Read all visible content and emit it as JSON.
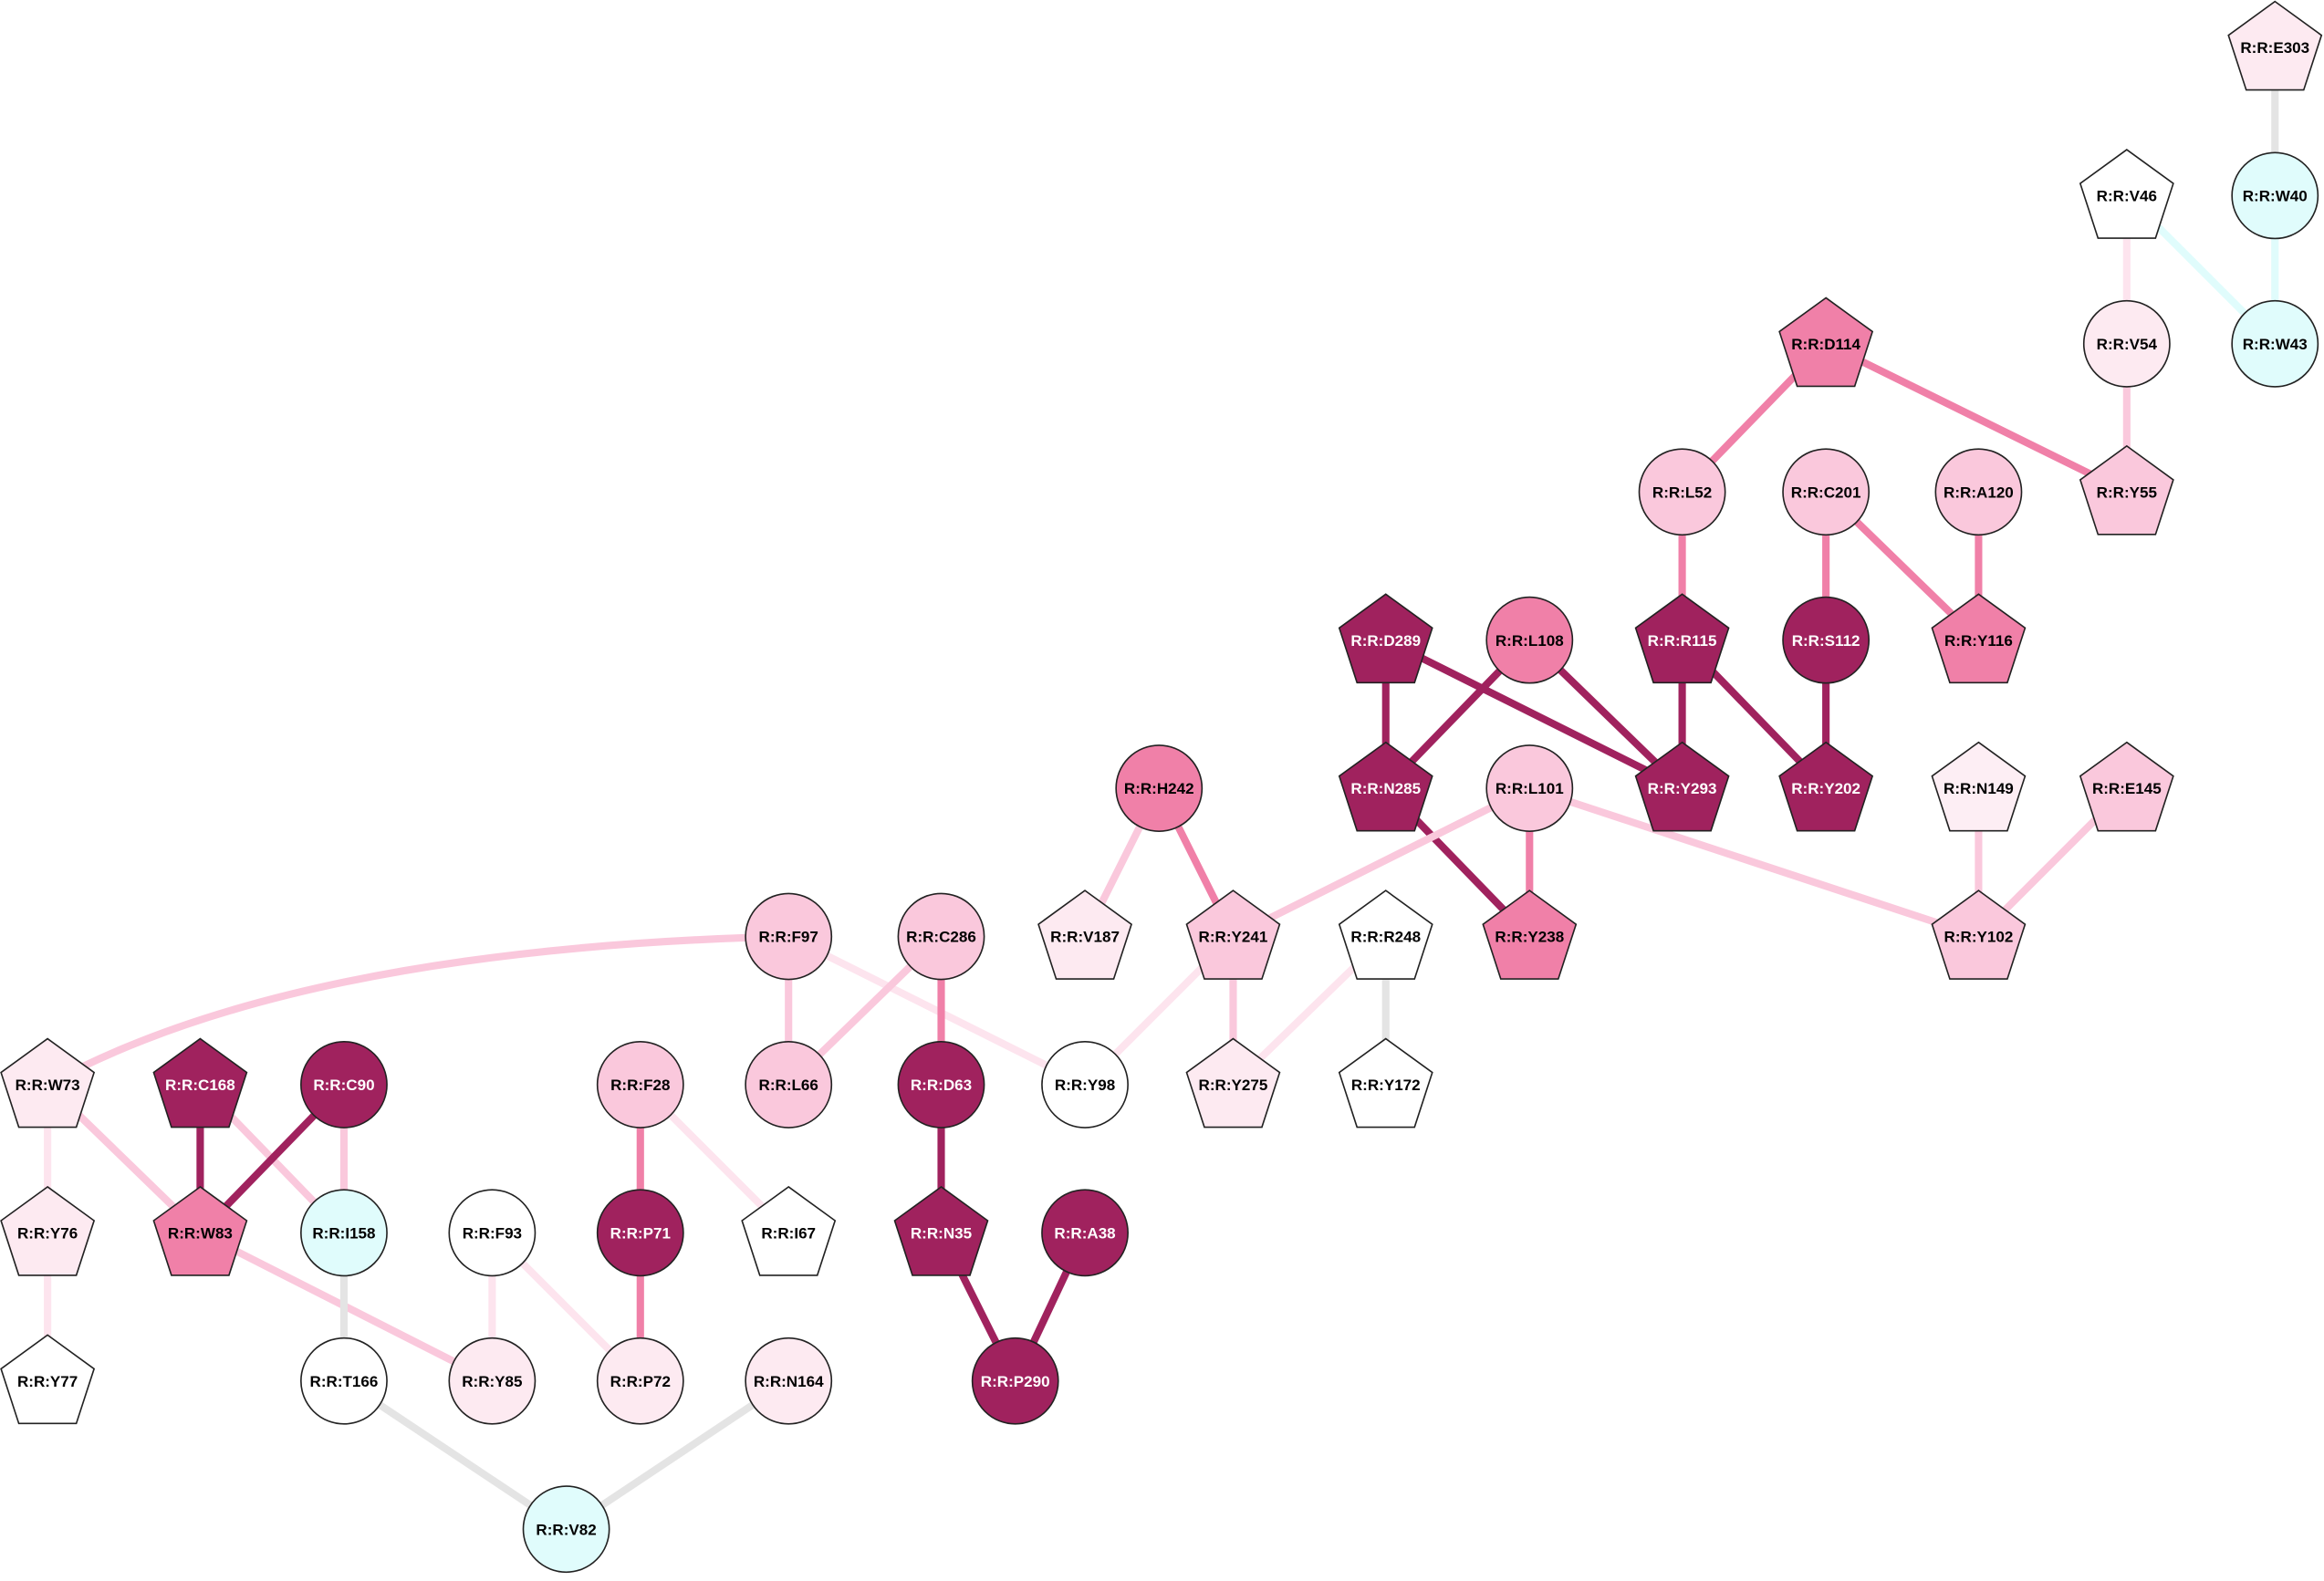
{
  "nodes": [
    {
      "label": "R:R:E303",
      "shape": "pentagon",
      "color": "#fdeaf1"
    },
    {
      "label": "R:R:W40",
      "shape": "circle",
      "color": "#e0fcfc"
    },
    {
      "label": "R:R:V46",
      "shape": "pentagon",
      "color": "#ffffff"
    },
    {
      "label": "R:R:W43",
      "shape": "circle",
      "color": "#e0fcfc"
    },
    {
      "label": "R:R:V54",
      "shape": "circle",
      "color": "#fdeaf1"
    },
    {
      "label": "R:R:D114",
      "shape": "pentagon",
      "color": "#f080a8"
    },
    {
      "label": "R:R:L52",
      "shape": "circle",
      "color": "#fac8dc"
    },
    {
      "label": "R:R:C201",
      "shape": "circle",
      "color": "#fac8dc"
    },
    {
      "label": "R:R:A120",
      "shape": "circle",
      "color": "#fac8dc"
    },
    {
      "label": "R:R:Y55",
      "shape": "pentagon",
      "color": "#fac8dc"
    },
    {
      "label": "R:R:D289",
      "shape": "pentagon",
      "color": "#a0225e"
    },
    {
      "label": "R:R:L108",
      "shape": "circle",
      "color": "#f080a8"
    },
    {
      "label": "R:R:R115",
      "shape": "pentagon",
      "color": "#a0225e"
    },
    {
      "label": "R:R:S112",
      "shape": "circle",
      "color": "#a0225e"
    },
    {
      "label": "R:R:Y116",
      "shape": "pentagon",
      "color": "#f080a8"
    },
    {
      "label": "R:R:H242",
      "shape": "circle",
      "color": "#f080a8"
    },
    {
      "label": "R:R:N285",
      "shape": "pentagon",
      "color": "#a0225e"
    },
    {
      "label": "R:R:L101",
      "shape": "circle",
      "color": "#fac8dc"
    },
    {
      "label": "R:R:Y293",
      "shape": "pentagon",
      "color": "#a0225e"
    },
    {
      "label": "R:R:Y202",
      "shape": "pentagon",
      "color": "#a0225e"
    },
    {
      "label": "R:R:N149",
      "shape": "pentagon",
      "color": "#fdeef4"
    },
    {
      "label": "R:R:E145",
      "shape": "pentagon",
      "color": "#fac8dc"
    },
    {
      "label": "R:R:F97",
      "shape": "circle",
      "color": "#fac8dc"
    },
    {
      "label": "R:R:C286",
      "shape": "circle",
      "color": "#fac8dc"
    },
    {
      "label": "R:R:V187",
      "shape": "pentagon",
      "color": "#fdeaf1"
    },
    {
      "label": "R:R:Y241",
      "shape": "pentagon",
      "color": "#fac8dc"
    },
    {
      "label": "R:R:R248",
      "shape": "pentagon",
      "color": "#ffffff"
    },
    {
      "label": "R:R:Y238",
      "shape": "pentagon",
      "color": "#f080a8"
    },
    {
      "label": "R:R:Y102",
      "shape": "pentagon",
      "color": "#fac8dc"
    },
    {
      "label": "R:R:W73",
      "shape": "pentagon",
      "color": "#fdeaf1"
    },
    {
      "label": "R:R:C168",
      "shape": "pentagon",
      "color": "#a0225e"
    },
    {
      "label": "R:R:C90",
      "shape": "circle",
      "color": "#a0225e"
    },
    {
      "label": "R:R:F28",
      "shape": "circle",
      "color": "#fac8dc"
    },
    {
      "label": "R:R:L66",
      "shape": "circle",
      "color": "#fac8dc"
    },
    {
      "label": "R:R:D63",
      "shape": "circle",
      "color": "#a0225e"
    },
    {
      "label": "R:R:Y98",
      "shape": "circle",
      "color": "#ffffff"
    },
    {
      "label": "R:R:Y275",
      "shape": "pentagon",
      "color": "#fdeaf1"
    },
    {
      "label": "R:R:Y172",
      "shape": "pentagon",
      "color": "#ffffff"
    },
    {
      "label": "R:R:Y76",
      "shape": "pentagon",
      "color": "#fdeaf1"
    },
    {
      "label": "R:R:W83",
      "shape": "pentagon",
      "color": "#f080a8"
    },
    {
      "label": "R:R:I158",
      "shape": "circle",
      "color": "#e0fcfc"
    },
    {
      "label": "R:R:F93",
      "shape": "circle",
      "color": "#ffffff"
    },
    {
      "label": "R:R:P71",
      "shape": "circle",
      "color": "#a0225e"
    },
    {
      "label": "R:R:I67",
      "shape": "pentagon",
      "color": "#ffffff"
    },
    {
      "label": "R:R:N35",
      "shape": "pentagon",
      "color": "#a0225e"
    },
    {
      "label": "R:R:A38",
      "shape": "circle",
      "color": "#a0225e"
    },
    {
      "label": "R:R:Y77",
      "shape": "pentagon",
      "color": "#ffffff"
    },
    {
      "label": "R:R:T166",
      "shape": "circle",
      "color": "#ffffff"
    },
    {
      "label": "R:R:Y85",
      "shape": "circle",
      "color": "#fdeaf1"
    },
    {
      "label": "R:R:P72",
      "shape": "circle",
      "color": "#fdeaf1"
    },
    {
      "label": "R:R:N164",
      "shape": "circle",
      "color": "#fdeaf1"
    },
    {
      "label": "R:R:P290",
      "shape": "circle",
      "color": "#a0225e"
    },
    {
      "label": "R:R:V82",
      "shape": "circle",
      "color": "#e0fcfc"
    }
  ]
}
